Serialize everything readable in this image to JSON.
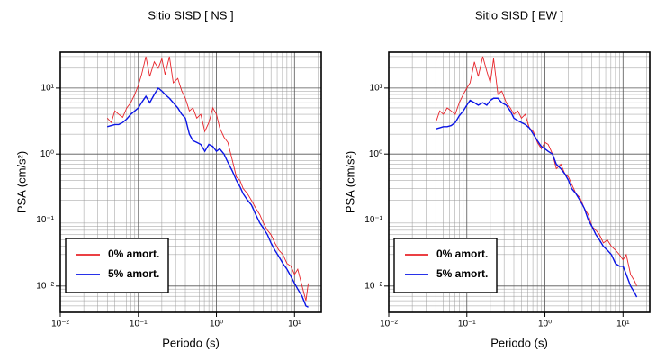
{
  "chart_data": [
    {
      "type": "line",
      "title": "Sitio SISD [ NS ]",
      "xlabel": "Periodo (s)",
      "ylabel": "PSA (cm/s²)",
      "xscale": "log",
      "yscale": "log",
      "grid": true,
      "legend": "lower left",
      "xlim": [
        0.01,
        22
      ],
      "ylim": [
        0.004,
        35
      ],
      "xticks": [
        {
          "value": 0.01,
          "label": "10⁻²"
        },
        {
          "value": 0.1,
          "label": "10⁻¹"
        },
        {
          "value": 1,
          "label": "10⁰"
        },
        {
          "value": 10,
          "label": "10¹"
        }
      ],
      "yticks": [
        {
          "value": 0.01,
          "label": "10⁻²"
        },
        {
          "value": 0.1,
          "label": "10⁻¹"
        },
        {
          "value": 1,
          "label": "10⁰"
        },
        {
          "value": 10,
          "label": "10¹"
        }
      ],
      "xminor": [
        0.02,
        0.03,
        0.04,
        0.05,
        0.06,
        0.07,
        0.08,
        0.09,
        0.2,
        0.3,
        0.4,
        0.5,
        0.6,
        0.7,
        0.8,
        0.9,
        2,
        3,
        4,
        5,
        6,
        7,
        8,
        9,
        20
      ],
      "yminor": [
        0.004,
        0.005,
        0.006,
        0.007,
        0.008,
        0.009,
        0.02,
        0.03,
        0.04,
        0.05,
        0.06,
        0.07,
        0.08,
        0.09,
        0.2,
        0.3,
        0.4,
        0.5,
        0.6,
        0.7,
        0.8,
        0.9,
        2,
        3,
        4,
        5,
        6,
        7,
        8,
        9,
        20,
        30
      ],
      "x": [
        0.04,
        0.045,
        0.05,
        0.056,
        0.063,
        0.071,
        0.08,
        0.09,
        0.1,
        0.11,
        0.125,
        0.14,
        0.16,
        0.18,
        0.2,
        0.22,
        0.25,
        0.28,
        0.32,
        0.36,
        0.4,
        0.45,
        0.5,
        0.56,
        0.63,
        0.71,
        0.8,
        0.9,
        1.0,
        1.1,
        1.25,
        1.4,
        1.6,
        1.8,
        2.0,
        2.2,
        2.5,
        2.8,
        3.2,
        3.6,
        4.0,
        4.5,
        5.0,
        5.6,
        6.3,
        7.1,
        8.0,
        9.0,
        10,
        11,
        12.5,
        14,
        15
      ],
      "series": [
        {
          "name": "0% amort.",
          "color": "#e8242a",
          "values": [
            3.5,
            3.0,
            4.5,
            4.0,
            3.6,
            5.0,
            6.0,
            8.0,
            11,
            16,
            30,
            15,
            25,
            20,
            28,
            16,
            30,
            12,
            14,
            9,
            7,
            4.5,
            5,
            3.5,
            4,
            2.2,
            3,
            5,
            4,
            2.5,
            1.8,
            1.5,
            0.8,
            0.45,
            0.4,
            0.3,
            0.25,
            0.2,
            0.15,
            0.12,
            0.09,
            0.07,
            0.06,
            0.045,
            0.035,
            0.03,
            0.022,
            0.02,
            0.015,
            0.018,
            0.01,
            0.006,
            0.011
          ]
        },
        {
          "name": "5% amort.",
          "color": "#0a14e6",
          "values": [
            2.6,
            2.7,
            2.8,
            2.8,
            3.0,
            3.4,
            4.0,
            4.5,
            5.0,
            6.0,
            7.5,
            6.0,
            8.0,
            10,
            9.0,
            8.0,
            7.0,
            6.0,
            5.0,
            4.0,
            3.5,
            2.0,
            1.6,
            1.5,
            1.4,
            1.1,
            1.4,
            1.3,
            1.1,
            1.2,
            1.0,
            0.75,
            0.55,
            0.4,
            0.32,
            0.25,
            0.2,
            0.17,
            0.12,
            0.09,
            0.075,
            0.06,
            0.045,
            0.035,
            0.028,
            0.022,
            0.018,
            0.014,
            0.011,
            0.009,
            0.007,
            0.005,
            0.0048
          ]
        }
      ]
    },
    {
      "type": "line",
      "title": "Sitio SISD [ EW ]",
      "xlabel": "Periodo (s)",
      "ylabel": "PSA (cm/s²)",
      "xscale": "log",
      "yscale": "log",
      "grid": true,
      "legend": "lower left",
      "xlim": [
        0.01,
        22
      ],
      "ylim": [
        0.004,
        35
      ],
      "xticks": [
        {
          "value": 0.01,
          "label": "10⁻²"
        },
        {
          "value": 0.1,
          "label": "10⁻¹"
        },
        {
          "value": 1,
          "label": "10⁰"
        },
        {
          "value": 10,
          "label": "10¹"
        }
      ],
      "yticks": [
        {
          "value": 0.01,
          "label": "10⁻²"
        },
        {
          "value": 0.1,
          "label": "10⁻¹"
        },
        {
          "value": 1,
          "label": "10⁰"
        },
        {
          "value": 10,
          "label": "10¹"
        }
      ],
      "xminor": [
        0.02,
        0.03,
        0.04,
        0.05,
        0.06,
        0.07,
        0.08,
        0.09,
        0.2,
        0.3,
        0.4,
        0.5,
        0.6,
        0.7,
        0.8,
        0.9,
        2,
        3,
        4,
        5,
        6,
        7,
        8,
        9,
        20
      ],
      "yminor": [
        0.004,
        0.005,
        0.006,
        0.007,
        0.008,
        0.009,
        0.02,
        0.03,
        0.04,
        0.05,
        0.06,
        0.07,
        0.08,
        0.09,
        0.2,
        0.3,
        0.4,
        0.5,
        0.6,
        0.7,
        0.8,
        0.9,
        2,
        3,
        4,
        5,
        6,
        7,
        8,
        9,
        20,
        30
      ],
      "x": [
        0.04,
        0.045,
        0.05,
        0.056,
        0.063,
        0.071,
        0.08,
        0.09,
        0.1,
        0.11,
        0.125,
        0.14,
        0.16,
        0.18,
        0.2,
        0.22,
        0.25,
        0.28,
        0.32,
        0.36,
        0.4,
        0.45,
        0.5,
        0.56,
        0.63,
        0.71,
        0.8,
        0.9,
        1.0,
        1.1,
        1.25,
        1.4,
        1.6,
        1.8,
        2.0,
        2.2,
        2.5,
        2.8,
        3.2,
        3.6,
        4.0,
        4.5,
        5.0,
        5.6,
        6.3,
        7.1,
        8.0,
        9.0,
        10,
        11,
        12.5,
        14,
        15
      ],
      "series": [
        {
          "name": "0% amort.",
          "color": "#e8242a",
          "values": [
            3.0,
            4.5,
            4.0,
            5.0,
            4.5,
            4.0,
            6.0,
            8.0,
            10,
            12,
            25,
            15,
            30,
            18,
            12,
            28,
            8,
            9,
            6,
            5,
            4,
            4.5,
            3.5,
            4,
            2.5,
            2.2,
            1.5,
            1.2,
            1.5,
            1.4,
            1.0,
            0.6,
            0.7,
            0.5,
            0.45,
            0.35,
            0.25,
            0.22,
            0.15,
            0.12,
            0.08,
            0.07,
            0.06,
            0.045,
            0.05,
            0.04,
            0.035,
            0.03,
            0.025,
            0.03,
            0.015,
            0.012,
            0.01
          ]
        },
        {
          "name": "5% amort.",
          "color": "#0a14e6",
          "values": [
            2.4,
            2.5,
            2.6,
            2.6,
            2.7,
            3.0,
            3.8,
            4.5,
            5.5,
            6.5,
            6.0,
            5.5,
            6.0,
            5.5,
            6.5,
            7.0,
            7.0,
            6.0,
            5.5,
            4.5,
            3.5,
            3.2,
            3.0,
            2.8,
            2.5,
            2.0,
            1.6,
            1.3,
            1.2,
            1.1,
            1.0,
            0.7,
            0.6,
            0.5,
            0.4,
            0.3,
            0.25,
            0.2,
            0.15,
            0.1,
            0.08,
            0.06,
            0.05,
            0.04,
            0.035,
            0.03,
            0.022,
            0.02,
            0.02,
            0.015,
            0.01,
            0.008,
            0.0068
          ]
        }
      ]
    }
  ]
}
